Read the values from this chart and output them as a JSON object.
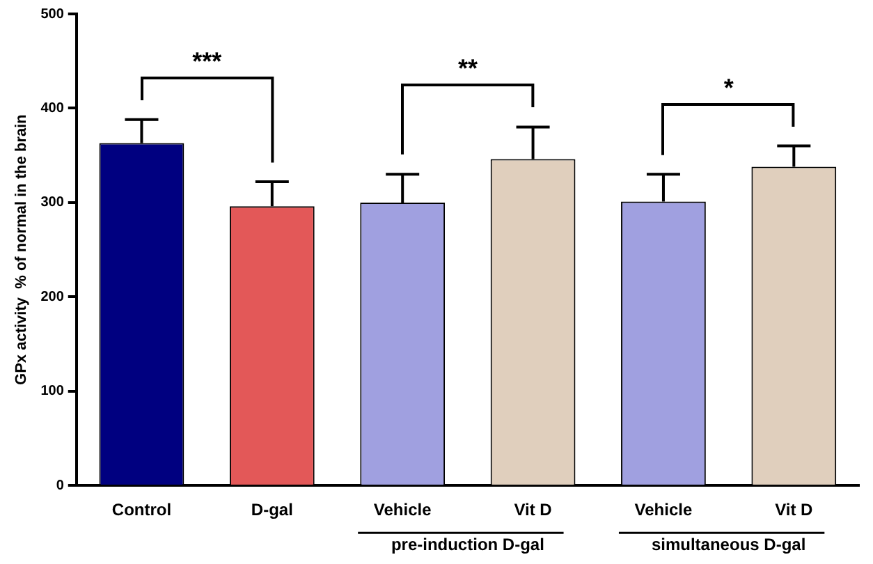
{
  "chart_data": {
    "type": "bar",
    "ylabel": "GPx activity  % of normal in the brain",
    "categories": [
      "Control",
      "D-gal",
      "Vehicle",
      "Vit D",
      "Vehicle",
      "Vit D"
    ],
    "values": [
      363,
      296,
      300,
      346,
      301,
      338
    ],
    "colors": [
      "#000080",
      "#e35858",
      "#a0a0e0",
      "#e0cfbd",
      "#a0a0e0",
      "#e0cfbd"
    ],
    "errors": [
      [
        363,
        388
      ],
      [
        296,
        322
      ],
      [
        300,
        330
      ],
      [
        346,
        380
      ],
      [
        301,
        330
      ],
      [
        338,
        360
      ]
    ],
    "ylim": [
      0,
      500
    ],
    "yticks": [
      0,
      100,
      200,
      300,
      400,
      500
    ],
    "grid": false,
    "legend": false,
    "annotations": [
      "***",
      "**",
      "*",
      "pre-induction D-gal",
      "simultaneous D-gal"
    ]
  }
}
